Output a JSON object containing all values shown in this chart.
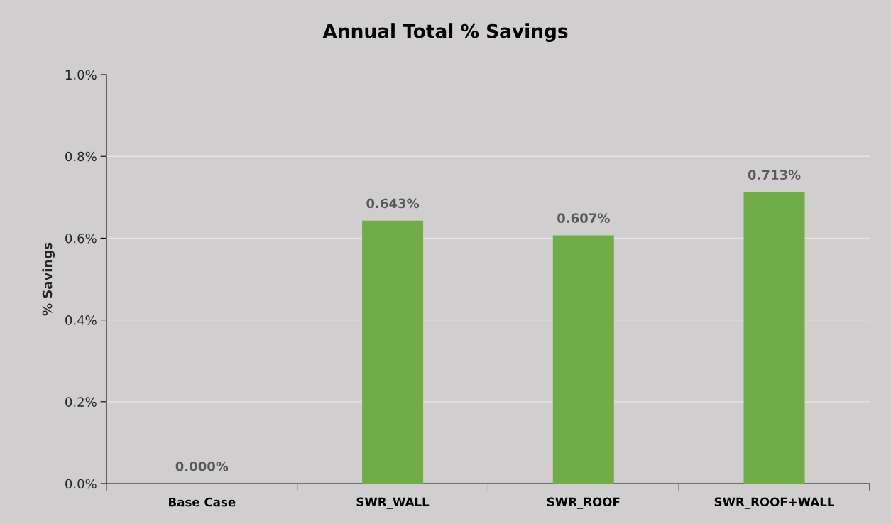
{
  "chart_data": {
    "type": "bar",
    "title": "Annual Total % Savings",
    "ylabel": "% Savings",
    "categories": [
      "Base Case",
      "SWR_WALL",
      "SWR_ROOF",
      "SWR_ROOF+WALL"
    ],
    "values": [
      0.0,
      0.643,
      0.607,
      0.713
    ],
    "color": "#70ad47",
    "value_labels": [
      "0.000%",
      "0.643%",
      "0.607%",
      "0.713%"
    ],
    "ylim": [
      0,
      1.0
    ],
    "yticks": [
      {
        "value": 0,
        "label": "0.0%"
      },
      {
        "value": 0.2,
        "label": "0.2%"
      },
      {
        "value": 0.4,
        "label": "0.4%"
      },
      {
        "value": 0.6,
        "label": "0.6%"
      },
      {
        "value": 0.8,
        "label": "0.8%"
      },
      {
        "value": 1.0,
        "label": "1.0%"
      }
    ],
    "grid": "y",
    "legend": false
  }
}
